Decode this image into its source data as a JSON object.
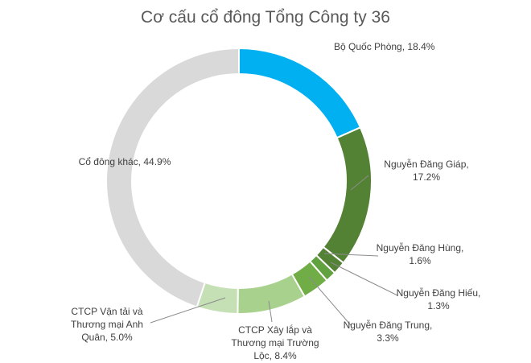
{
  "chart_data": {
    "type": "donut",
    "title": "Cơ cấu cổ đông Tổng Công ty 36",
    "slices": [
      {
        "name": "Bộ Quốc Phòng",
        "value": 18.4,
        "color": "#00B0F0",
        "label_lines": [
          "Bộ Quốc Phòng, 18.4%"
        ]
      },
      {
        "name": "Nguyễn Đăng Giáp",
        "value": 17.2,
        "color": "#548235",
        "label_lines": [
          "Nguyễn Đăng Giáp,",
          "17.2%"
        ]
      },
      {
        "name": "Nguyễn Đăng Hùng",
        "value": 1.6,
        "color": "#548235",
        "label_lines": [
          "Nguyễn Đăng Hùng,",
          "1.6%"
        ]
      },
      {
        "name": "Nguyễn Đăng Hiếu",
        "value": 1.3,
        "color": "#61A13F",
        "label_lines": [
          "Nguyễn Đăng Hiếu,",
          "1.3%"
        ]
      },
      {
        "name": "Nguyễn Đăng Trung",
        "value": 3.3,
        "color": "#70AD47",
        "label_lines": [
          "Nguyễn Đăng Trung,",
          "3.3%"
        ]
      },
      {
        "name": "CTCP Xây lắp và Thương mại Trường Lộc",
        "value": 8.4,
        "color": "#A9D18E",
        "label_lines": [
          "CTCP Xây lắp và",
          "Thương mại Trường",
          "Lộc, 8.4%"
        ]
      },
      {
        "name": "CTCP Vận tải và Thương mại Anh Quân",
        "value": 5.0,
        "color": "#C5E0B4",
        "label_lines": [
          "CTCP Vận tải và",
          "Thương mại Anh",
          "Quân, 5.0%"
        ]
      },
      {
        "name": "Cổ đông khác",
        "value": 44.9,
        "color": "#D9D9D9",
        "label_lines": [
          "Cổ đông khác, 44.9%"
        ]
      }
    ]
  }
}
